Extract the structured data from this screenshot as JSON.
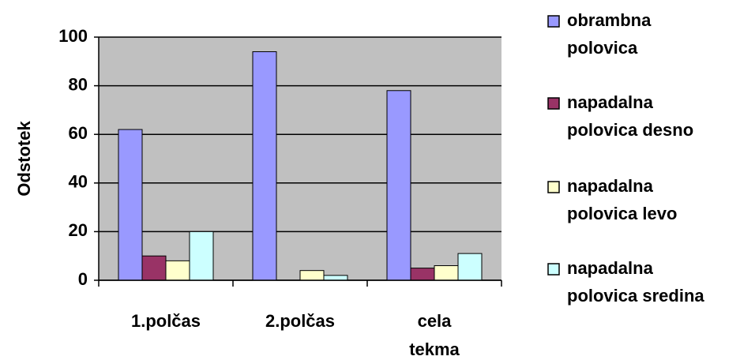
{
  "chart_data": {
    "type": "bar",
    "y_label": "Odstotek",
    "categories": [
      "1.polčas",
      "2.polčas",
      "cela tekma"
    ],
    "series": [
      {
        "name": "obrambna polovica",
        "color": "#9999ff",
        "values": [
          62,
          94,
          78
        ]
      },
      {
        "name": "napadalna polovica desno",
        "color": "#993366",
        "values": [
          10,
          0,
          5
        ]
      },
      {
        "name": "napadalna polovica levo",
        "color": "#ffffcc",
        "values": [
          8,
          4,
          6
        ]
      },
      {
        "name": "napadalna polovica sredina",
        "color": "#ccffff",
        "values": [
          20,
          2,
          11
        ]
      }
    ],
    "ylim": [
      0,
      100
    ],
    "yticks": [
      0,
      20,
      40,
      60,
      80,
      100
    ],
    "grid": true,
    "legend": "right",
    "plot_background": "#c0c0c0"
  }
}
